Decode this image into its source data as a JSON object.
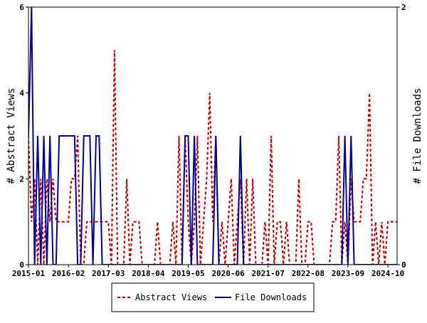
{
  "chart_data": {
    "type": "line",
    "y_left_label": "# Abstract Views",
    "y_right_label": "# File Downloads",
    "y_left_lim": [
      0,
      6
    ],
    "y_right_lim": [
      0,
      2
    ],
    "y_left_ticks": [
      "0",
      "2",
      "4",
      "6"
    ],
    "y_right_ticks": [
      "0",
      "2"
    ],
    "x_lim": [
      "2015-01",
      "2025-01"
    ],
    "x_ticks": [
      "2015-01",
      "2016-02",
      "2017-03",
      "2018-04",
      "2019-05",
      "2020-06",
      "2021-07",
      "2022-08",
      "2023-09",
      "2024-10"
    ],
    "legend_position": "bottom-center",
    "series": [
      {
        "name": "Abstract Views",
        "axis": "left",
        "color": "#cc0000",
        "style": "dashed",
        "x": [
          "2015-01",
          "2015-02",
          "2015-03",
          "2015-04",
          "2015-05",
          "2015-06",
          "2015-07",
          "2015-08",
          "2015-09",
          "2015-10",
          "2015-11",
          "2015-12",
          "2016-01",
          "2016-02",
          "2016-03",
          "2016-04",
          "2016-05",
          "2016-06",
          "2016-07",
          "2016-08",
          "2016-09",
          "2016-10",
          "2016-11",
          "2016-12",
          "2017-01",
          "2017-02",
          "2017-03",
          "2017-04",
          "2017-05",
          "2017-06",
          "2017-07",
          "2017-08",
          "2017-09",
          "2017-10",
          "2017-11",
          "2017-12",
          "2018-01",
          "2018-02",
          "2018-03",
          "2018-04",
          "2018-05",
          "2018-06",
          "2018-07",
          "2018-08",
          "2018-09",
          "2018-10",
          "2018-11",
          "2018-12",
          "2019-01",
          "2019-02",
          "2019-03",
          "2019-04",
          "2019-05",
          "2019-06",
          "2019-07",
          "2019-08",
          "2019-09",
          "2019-10",
          "2019-11",
          "2019-12",
          "2020-01",
          "2020-02",
          "2020-03",
          "2020-04",
          "2020-05",
          "2020-06",
          "2020-07",
          "2020-08",
          "2020-09",
          "2020-10",
          "2020-11",
          "2020-12",
          "2021-01",
          "2021-02",
          "2021-03",
          "2021-04",
          "2021-05",
          "2021-06",
          "2021-07",
          "2021-08",
          "2021-09",
          "2021-10",
          "2021-11",
          "2021-12",
          "2022-01",
          "2022-02",
          "2022-03",
          "2022-04",
          "2022-05",
          "2022-06",
          "2022-07",
          "2022-08",
          "2022-09",
          "2022-10",
          "2022-11",
          "2022-12",
          "2023-01",
          "2023-02",
          "2023-03",
          "2023-04",
          "2023-05",
          "2023-06",
          "2023-07",
          "2023-08",
          "2023-09",
          "2023-10",
          "2023-11",
          "2023-12",
          "2024-01",
          "2024-02",
          "2024-03",
          "2024-04",
          "2024-05",
          "2024-06",
          "2024-07",
          "2024-08",
          "2024-09",
          "2024-10",
          "2024-11",
          "2024-12",
          "2025-01"
        ],
        "values": [
          3,
          1,
          2,
          0,
          2,
          0,
          2,
          1,
          2,
          1,
          1,
          1,
          1,
          1,
          2,
          2,
          3,
          0,
          0,
          1,
          1,
          1,
          1,
          1,
          1,
          1,
          1,
          0,
          5,
          0,
          0,
          0,
          2,
          0,
          1,
          1,
          1,
          0,
          0,
          0,
          0,
          0,
          1,
          0,
          0,
          0,
          0,
          1,
          0,
          3,
          0,
          3,
          1,
          0,
          1,
          3,
          0,
          1,
          2,
          4,
          1,
          3,
          0,
          1,
          0,
          1,
          2,
          0,
          1,
          2,
          0,
          2,
          0,
          2,
          0,
          0,
          0,
          1,
          0,
          3,
          0,
          1,
          1,
          0,
          1,
          0,
          0,
          0,
          2,
          0,
          0,
          1,
          1,
          0,
          0,
          0,
          0,
          0,
          0,
          1,
          1,
          3,
          0,
          1,
          0,
          2,
          1,
          1,
          1,
          2,
          2,
          4,
          0,
          1,
          0,
          1,
          0,
          1,
          1,
          1,
          1
        ]
      },
      {
        "name": "File Downloads",
        "axis": "right",
        "color": "#0000aa",
        "style": "solid",
        "x": [
          "2015-01",
          "2015-02",
          "2015-03",
          "2015-04",
          "2015-05",
          "2015-06",
          "2015-07",
          "2015-08",
          "2015-09",
          "2015-10",
          "2015-11",
          "2015-12",
          "2016-01",
          "2016-02",
          "2016-03",
          "2016-04",
          "2016-05",
          "2016-06",
          "2016-07",
          "2016-08",
          "2016-09",
          "2016-10",
          "2016-11",
          "2016-12",
          "2017-01",
          "2017-02",
          "2017-03",
          "2017-04",
          "2017-05",
          "2017-06",
          "2017-07",
          "2017-08",
          "2017-09",
          "2017-10",
          "2017-11",
          "2017-12",
          "2018-01",
          "2018-02",
          "2018-03",
          "2018-04",
          "2018-05",
          "2018-06",
          "2018-07",
          "2018-08",
          "2018-09",
          "2018-10",
          "2018-11",
          "2018-12",
          "2019-01",
          "2019-02",
          "2019-03",
          "2019-04",
          "2019-05",
          "2019-06",
          "2019-07",
          "2019-08",
          "2019-09",
          "2019-10",
          "2019-11",
          "2019-12",
          "2020-01",
          "2020-02",
          "2020-03",
          "2020-04",
          "2020-05",
          "2020-06",
          "2020-07",
          "2020-08",
          "2020-09",
          "2020-10",
          "2020-11",
          "2020-12",
          "2021-01",
          "2021-02",
          "2021-03",
          "2021-04",
          "2021-05",
          "2021-06",
          "2021-07",
          "2021-08",
          "2021-09",
          "2021-10",
          "2021-11",
          "2021-12",
          "2022-01",
          "2022-02",
          "2022-03",
          "2022-04",
          "2022-05",
          "2022-06",
          "2022-07",
          "2022-08",
          "2022-09",
          "2022-10",
          "2022-11",
          "2022-12",
          "2023-01",
          "2023-02",
          "2023-03",
          "2023-04",
          "2023-05",
          "2023-06",
          "2023-07",
          "2023-08",
          "2023-09",
          "2023-10",
          "2023-11",
          "2023-12",
          "2024-01",
          "2024-02",
          "2024-03",
          "2024-04",
          "2024-05",
          "2024-06",
          "2024-07",
          "2024-08",
          "2024-09",
          "2024-10",
          "2024-11",
          "2024-12",
          "2025-01"
        ],
        "values": [
          1,
          2,
          0,
          1,
          0,
          1,
          0,
          1,
          0,
          0,
          1,
          1,
          1,
          1,
          1,
          1,
          0,
          0,
          1,
          1,
          1,
          0,
          1,
          1,
          0,
          0,
          0,
          0,
          0,
          0,
          0,
          0,
          0,
          0,
          0,
          0,
          0,
          0,
          0,
          0,
          0,
          0,
          0,
          0,
          0,
          0,
          0,
          0,
          0,
          0,
          0,
          1,
          1,
          0,
          1,
          0,
          0,
          0,
          0,
          0,
          0,
          1,
          0,
          0,
          0,
          0,
          0,
          0,
          0,
          1,
          0,
          0,
          0,
          0,
          0,
          0,
          0,
          0,
          0,
          0,
          0,
          0,
          0,
          0,
          0,
          0,
          0,
          0,
          0,
          0,
          0,
          0,
          0,
          0,
          0,
          0,
          0,
          0,
          0,
          0,
          0,
          0,
          0,
          1,
          0,
          1,
          0,
          0,
          0,
          0,
          0,
          0,
          0,
          0,
          0,
          0,
          0,
          0,
          0,
          0,
          0
        ]
      }
    ]
  }
}
